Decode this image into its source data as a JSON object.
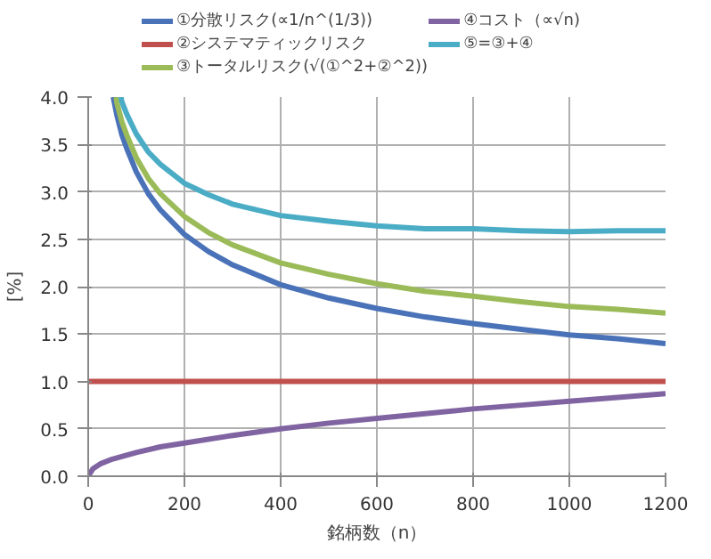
{
  "chart_data": {
    "type": "line",
    "xlabel": "銘柄数（n）",
    "ylabel": "[%]",
    "xlim": [
      0,
      1200
    ],
    "ylim": [
      0,
      4
    ],
    "xticks": [
      0,
      200,
      400,
      600,
      800,
      1000,
      1200
    ],
    "yticks": [
      {
        "value": 0,
        "label": "0.0"
      },
      {
        "value": 0.5,
        "label": "0.5"
      },
      {
        "value": 1,
        "label": "1.0"
      },
      {
        "value": 1.5,
        "label": "1.5"
      },
      {
        "value": 2,
        "label": "2.0"
      },
      {
        "value": 2.5,
        "label": "2.5"
      },
      {
        "value": 3,
        "label": "3.0"
      },
      {
        "value": 3.5,
        "label": "3.5"
      },
      {
        "value": 4,
        "label": "4.0"
      }
    ],
    "grid": true,
    "legend": "top",
    "marker": "none",
    "line_style": "solid",
    "series": [
      {
        "name": "①分散リスク(∝1/n^(1/3))",
        "color": "#4a72b8",
        "x": [
          52,
          60,
          70,
          80,
          100,
          125,
          150,
          200,
          250,
          300,
          400,
          500,
          600,
          700,
          800,
          900,
          1000,
          1100,
          1200
        ],
        "values": [
          4.0,
          3.8,
          3.6,
          3.46,
          3.21,
          2.98,
          2.81,
          2.55,
          2.37,
          2.23,
          2.02,
          1.88,
          1.77,
          1.68,
          1.61,
          1.55,
          1.49,
          1.45,
          1.4
        ]
      },
      {
        "name": "②システマティックリスク",
        "color": "#c0504d",
        "x": [
          0,
          1200
        ],
        "values": [
          1.0,
          1.0
        ]
      },
      {
        "name": "③トータルリスク(√(①^2+②^2))",
        "color": "#9bbb59",
        "x": [
          58,
          60,
          70,
          80,
          100,
          125,
          150,
          200,
          250,
          300,
          400,
          500,
          600,
          700,
          800,
          900,
          1000,
          1100,
          1200
        ],
        "values": [
          4.0,
          3.93,
          3.74,
          3.6,
          3.36,
          3.14,
          2.98,
          2.74,
          2.57,
          2.44,
          2.25,
          2.13,
          2.03,
          1.95,
          1.9,
          1.84,
          1.79,
          1.76,
          1.72
        ]
      },
      {
        "name": "④コスト（∝√n)",
        "color": "#8064a2",
        "x": [
          0,
          10,
          25,
          50,
          100,
          150,
          200,
          300,
          400,
          500,
          600,
          700,
          800,
          900,
          1000,
          1100,
          1200
        ],
        "values": [
          0,
          0.08,
          0.13,
          0.18,
          0.25,
          0.31,
          0.35,
          0.43,
          0.5,
          0.56,
          0.61,
          0.66,
          0.71,
          0.75,
          0.79,
          0.83,
          0.87
        ]
      },
      {
        "name": "⑤=③+④",
        "color": "#4bacc6",
        "x": [
          68,
          70,
          80,
          100,
          125,
          150,
          200,
          250,
          300,
          400,
          500,
          600,
          700,
          800,
          900,
          1000,
          1100,
          1200
        ],
        "values": [
          4.0,
          3.95,
          3.82,
          3.61,
          3.42,
          3.29,
          3.09,
          2.97,
          2.87,
          2.75,
          2.69,
          2.64,
          2.61,
          2.61,
          2.59,
          2.58,
          2.59,
          2.59
        ]
      }
    ]
  }
}
